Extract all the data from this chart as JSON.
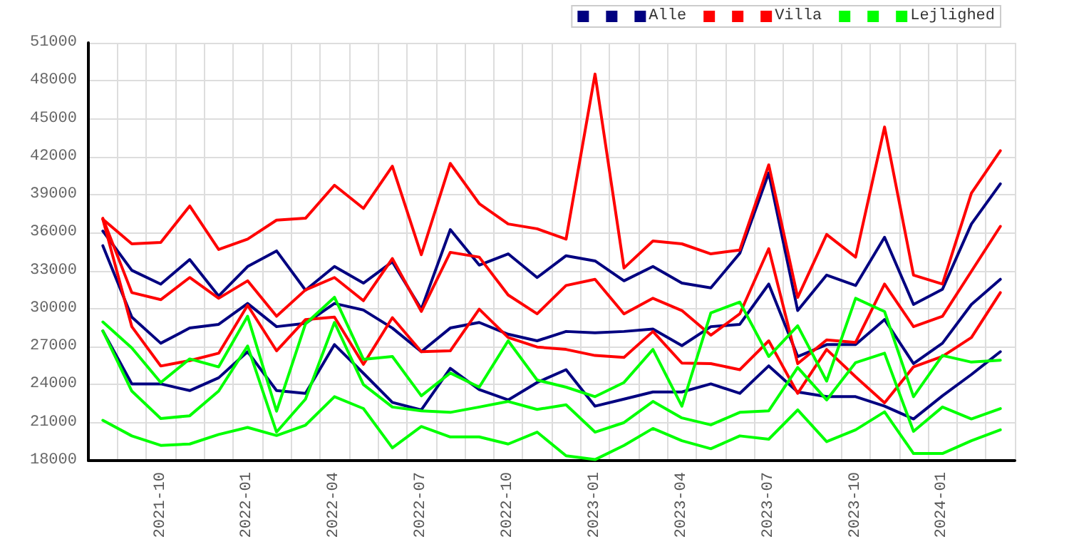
{
  "chart_data": {
    "type": "line",
    "categories": [
      null,
      null,
      "2021-10",
      null,
      null,
      "2022-01",
      null,
      null,
      "2022-04",
      null,
      null,
      "2022-07",
      null,
      null,
      "2022-10",
      null,
      null,
      "2023-01",
      null,
      null,
      "2023-04",
      null,
      null,
      "2023-07",
      null,
      null,
      "2023-10",
      null,
      null,
      "2024-01",
      null,
      null
    ],
    "series": [
      {
        "color": "#000080",
        "values": [
          36130,
          33030,
          31940,
          33880,
          31000,
          33330,
          34560,
          31460,
          33330,
          32020,
          33700,
          29960,
          36240,
          33440,
          34330,
          32460,
          34180,
          33770,
          32200,
          33330,
          32020,
          31640,
          34370,
          40720,
          29850,
          32650,
          31830,
          35640,
          30330,
          31530,
          36690,
          39860
        ]
      },
      {
        "color": "#000080",
        "values": [
          34970,
          29330,
          27270,
          28470,
          28760,
          30410,
          28580,
          28840,
          30410,
          29890,
          28470,
          26600,
          28470,
          28910,
          27980,
          27460,
          28200,
          28090,
          28200,
          28390,
          27080,
          28580,
          28760,
          31940,
          26220,
          27160,
          27160,
          29140,
          25660,
          27270,
          30330,
          32320
        ]
      },
      {
        "name": "Alle",
        "color": "#000080",
        "values": [
          28240,
          24060,
          24060,
          23530,
          24540,
          26600,
          23530,
          23310,
          27160,
          24900,
          22600,
          22000,
          25290,
          23610,
          22790,
          24170,
          25180,
          22300,
          22860,
          23420,
          23420,
          24060,
          23310,
          25480,
          23420,
          23050,
          23050,
          22300,
          21290,
          23120,
          24800,
          26600
        ]
      },
      {
        "color": "#ff0000",
        "values": [
          37060,
          35120,
          35230,
          38110,
          34670,
          35490,
          36990,
          37140,
          39750,
          37920,
          41250,
          34260,
          41470,
          38300,
          36690,
          36310,
          35490,
          48530,
          33210,
          35340,
          35120,
          34330,
          34630,
          41360,
          30890,
          35860,
          34070,
          44350,
          32650,
          31940,
          39120,
          42480
        ]
      },
      {
        "color": "#ff0000",
        "values": [
          37140,
          31270,
          30710,
          32460,
          30820,
          32200,
          29400,
          31480,
          32460,
          30630,
          33960,
          29780,
          34450,
          34070,
          31080,
          29590,
          31830,
          32320,
          29590,
          30820,
          29850,
          27910,
          29590,
          34740,
          25660,
          27530,
          27340,
          31940,
          28580,
          29400,
          32950,
          36500
        ]
      },
      {
        "name": "Villa",
        "color": "#ff0000",
        "values": [
          37060,
          28580,
          25470,
          25900,
          26480,
          30260,
          26670,
          29140,
          29330,
          25600,
          29290,
          26600,
          26670,
          29960,
          27720,
          26970,
          26780,
          26300,
          26150,
          28200,
          25700,
          25660,
          25180,
          27460,
          23310,
          26780,
          24620,
          22560,
          25400,
          26230,
          27720,
          31270
        ]
      },
      {
        "color": "#00ff00",
        "values": [
          28950,
          26900,
          24170,
          26030,
          25400,
          29400,
          21900,
          28800,
          30900,
          26000,
          26220,
          23120,
          24920,
          23800,
          27460,
          24360,
          23800,
          23050,
          24170,
          26780,
          22300,
          29660,
          30520,
          26220,
          28650,
          24280,
          30820,
          29770,
          23050,
          26300,
          25780,
          25930
        ]
      },
      {
        "color": "#00ff00",
        "values": [
          28240,
          23490,
          21320,
          21540,
          23490,
          27050,
          20250,
          22860,
          28910,
          24000,
          22230,
          21930,
          21810,
          22230,
          22670,
          22040,
          22410,
          20250,
          21000,
          22670,
          21370,
          20820,
          21810,
          21930,
          25360,
          22790,
          25740,
          26480,
          20310,
          22230,
          21290,
          22110
        ]
      },
      {
        "name": "Lejlighed",
        "color": "#00ff00",
        "values": [
          21180,
          19950,
          19200,
          19310,
          20060,
          20620,
          19980,
          20800,
          23050,
          22110,
          19010,
          20690,
          19870,
          19870,
          19310,
          20250,
          18380,
          18080,
          19200,
          20540,
          19570,
          18940,
          19950,
          19690,
          22000,
          19500,
          20430,
          21850,
          18560,
          18560,
          19570,
          20430
        ]
      }
    ],
    "ylim": [
      18000,
      51000
    ],
    "yticks": [
      18000,
      21000,
      24000,
      27000,
      30000,
      33000,
      36000,
      39000,
      42000,
      45000,
      48000,
      51000
    ],
    "grid": true,
    "legend": "top right",
    "marker": "none",
    "line_style": "solid"
  }
}
